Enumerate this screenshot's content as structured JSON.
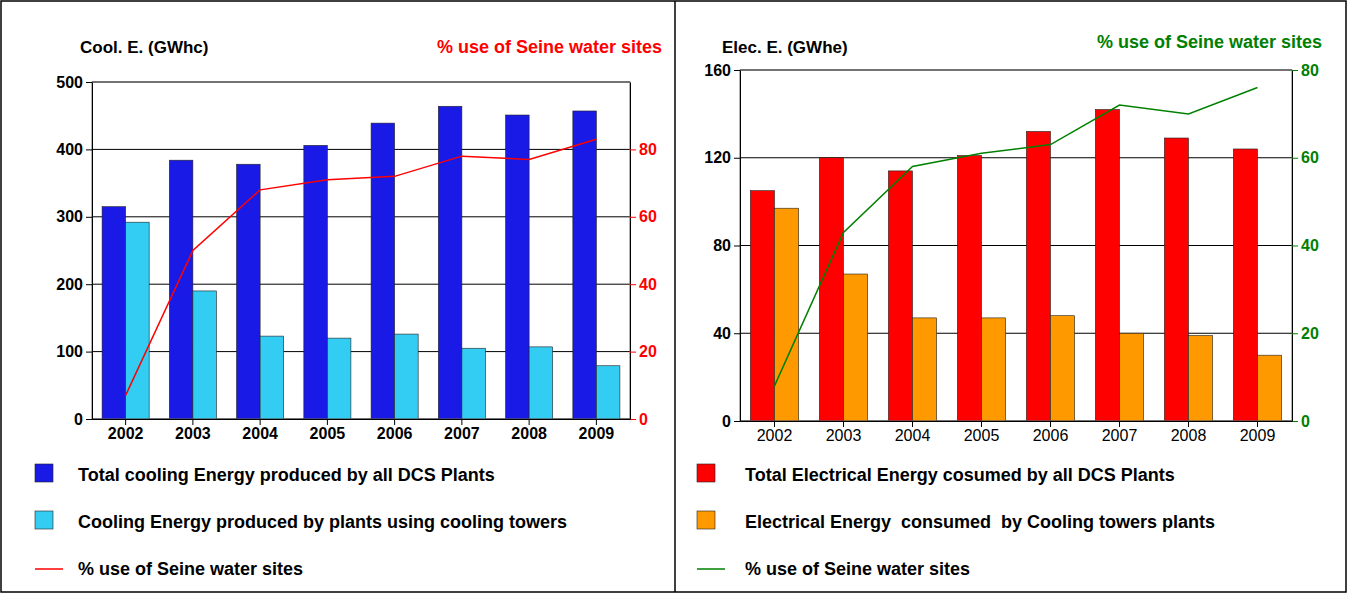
{
  "chart_data": [
    {
      "type": "bar",
      "ylabel": "Cool. E. (GWhc)",
      "y2label": "% use of Seine water sites",
      "categories": [
        "2002",
        "2003",
        "2004",
        "2005",
        "2006",
        "2007",
        "2008",
        "2009"
      ],
      "series": [
        {
          "name": "Total cooling Energy produced by all DCS Plants",
          "color": "#1a1ae6",
          "values": [
            315,
            384,
            378,
            406,
            439,
            464,
            451,
            457
          ]
        },
        {
          "name": "Cooling Energy produced by plants using cooling towers",
          "color": "#33ccf2",
          "values": [
            292,
            190,
            123,
            120,
            126,
            105,
            107,
            79
          ]
        },
        {
          "name": "% use of Seine water sites",
          "color": "#ff0000",
          "type": "line",
          "axis": "y2",
          "values": [
            7,
            50,
            68,
            71,
            72,
            78,
            77,
            83
          ]
        }
      ],
      "ylim": [
        0,
        500
      ],
      "yticks": [
        0,
        100,
        200,
        300,
        400,
        500
      ],
      "y2lim": [
        0,
        100
      ],
      "y2ticks": [
        0,
        20,
        40,
        60,
        80
      ],
      "grid": true,
      "legend": "bottom"
    },
    {
      "type": "bar",
      "ylabel": "Elec. E. (GWhe)",
      "y2label": "% use of Seine water sites",
      "categories": [
        "2002",
        "2003",
        "2004",
        "2005",
        "2006",
        "2007",
        "2008",
        "2009"
      ],
      "series": [
        {
          "name": "Total Electrical Energy cosumed by all DCS Plants",
          "color": "#ff0000",
          "values": [
            105,
            120,
            114,
            121,
            132,
            142,
            129,
            124
          ]
        },
        {
          "name": "Electrical Energy  consumed  by Cooling towers plants",
          "color": "#ff9900",
          "values": [
            97,
            67,
            47,
            47,
            48,
            40,
            39,
            30
          ]
        },
        {
          "name": "% use of Seine water sites",
          "color": "#008000",
          "type": "line",
          "axis": "y2",
          "values": [
            8,
            43,
            58,
            61,
            63,
            72,
            70,
            76
          ]
        }
      ],
      "ylim": [
        0,
        160
      ],
      "yticks": [
        0,
        40,
        80,
        120,
        160
      ],
      "y2lim": [
        0,
        80
      ],
      "y2ticks": [
        0,
        20,
        40,
        60,
        80
      ],
      "grid": true,
      "legend": "bottom"
    }
  ]
}
